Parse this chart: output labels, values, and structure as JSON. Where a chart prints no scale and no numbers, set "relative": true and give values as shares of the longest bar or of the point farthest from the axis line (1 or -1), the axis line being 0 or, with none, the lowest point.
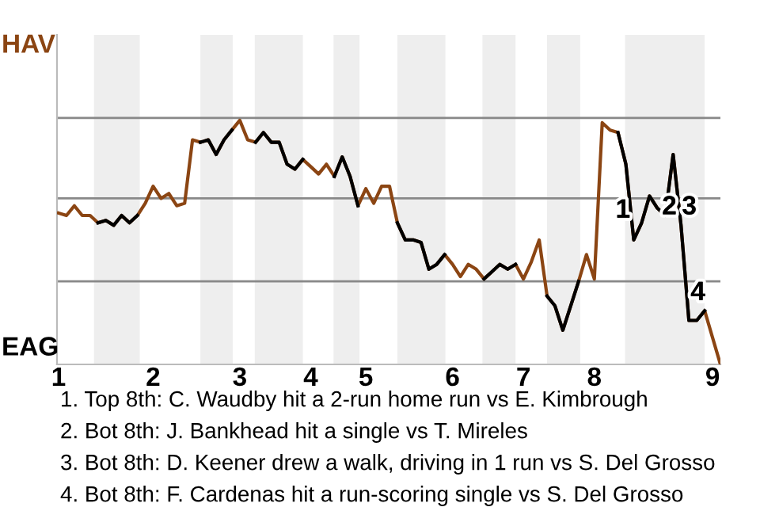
{
  "chart_data": {
    "type": "line",
    "relative": true,
    "categories": [
      "1",
      null,
      null,
      null,
      null,
      null,
      null,
      null,
      null,
      null,
      null,
      null,
      "2",
      null,
      null,
      null,
      null,
      null,
      null,
      null,
      null,
      null,
      null,
      "3",
      null,
      null,
      null,
      null,
      null,
      null,
      null,
      null,
      "4",
      null,
      null,
      null,
      null,
      null,
      null,
      "5",
      null,
      null,
      null,
      null,
      null,
      null,
      null,
      null,
      null,
      null,
      "6",
      null,
      null,
      null,
      null,
      null,
      null,
      null,
      null,
      "7",
      null,
      null,
      null,
      null,
      null,
      null,
      null,
      null,
      "8",
      null,
      null,
      null,
      null,
      null,
      null,
      null,
      null,
      null,
      null,
      null,
      null,
      null,
      null,
      "9",
      null
    ],
    "series": [
      {
        "color": "#8b4513",
        "values": [
          0.62,
          0.61,
          0.65,
          0.61,
          0.61,
          0.58,
          0.59,
          0.57,
          0.61,
          0.58,
          0.61,
          0.66,
          0.73,
          0.68,
          0.7,
          0.65,
          0.66,
          0.92,
          0.91,
          0.92,
          0.86,
          0.92,
          0.96,
          1.0,
          0.92,
          0.91,
          0.95,
          0.91,
          0.91,
          0.82,
          0.8,
          0.84,
          0.81,
          0.78,
          0.82,
          0.77,
          0.85,
          0.77,
          0.65,
          0.72,
          0.66,
          0.73,
          0.73,
          0.58,
          0.51,
          0.51,
          0.5,
          0.39,
          0.41,
          0.45,
          0.41,
          0.36,
          0.41,
          0.39,
          0.35,
          0.38,
          0.41,
          0.39,
          0.41,
          0.35,
          0.42,
          0.51,
          0.28,
          0.24,
          0.14,
          0.24,
          0.34,
          0.45,
          0.35,
          0.99,
          0.96,
          0.95,
          0.82,
          0.51,
          0.58,
          0.69,
          0.64,
          0.61,
          0.86,
          0.57,
          0.18,
          0.18,
          0.22,
          0.11,
          0.0
        ]
      },
      {
        "color": "#000000",
        "values": [
          null,
          null,
          null,
          null,
          null,
          0.58,
          0.59,
          0.57,
          0.61,
          0.58,
          0.61,
          null,
          null,
          null,
          null,
          null,
          null,
          null,
          0.91,
          0.92,
          0.86,
          0.92,
          0.96,
          null,
          null,
          0.91,
          0.95,
          0.91,
          0.91,
          0.82,
          0.8,
          0.84,
          null,
          null,
          null,
          0.77,
          0.85,
          0.77,
          0.65,
          null,
          null,
          null,
          null,
          0.58,
          0.51,
          0.51,
          0.5,
          0.39,
          0.41,
          0.45,
          null,
          null,
          null,
          null,
          0.35,
          0.38,
          0.41,
          0.39,
          0.41,
          null,
          null,
          null,
          0.28,
          0.24,
          0.14,
          0.24,
          0.34,
          null,
          null,
          null,
          null,
          0.95,
          0.82,
          0.51,
          0.58,
          0.69,
          0.64,
          0.61,
          0.86,
          0.57,
          0.18,
          0.18,
          0.22,
          null,
          null
        ]
      }
    ],
    "ref_lines": [
      {
        "axis": "y",
        "value": 0.34,
        "color": "#888888"
      },
      {
        "axis": "y",
        "value": 0.68,
        "color": "#888888"
      },
      {
        "axis": "y",
        "value": 1.01,
        "color": "#888888"
      }
    ],
    "annotations": [
      "1",
      "2",
      "3",
      "4",
      "HAV",
      "EAG",
      "1. Top 8th: C. Waudby hit a 2-run home run vs E. Kimbrough",
      "2. Bot 8th: J. Bankhead hit a single vs T. Mireles",
      "3. Bot 8th: D. Keener drew a walk, driving in 1 run vs S. Del Grosso",
      "4. Bot 8th: F. Cardenas hit a run-scoring single vs S. Del Grosso"
    ]
  }
}
